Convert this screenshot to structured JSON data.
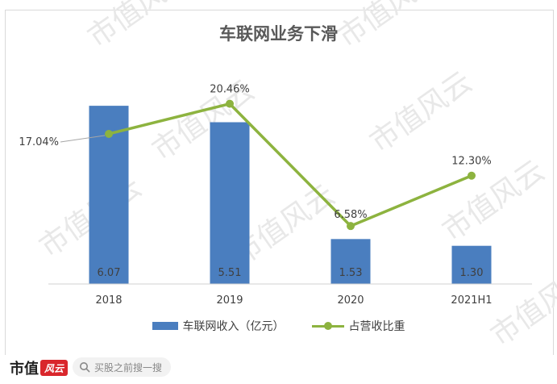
{
  "chart_data": {
    "type": "bar",
    "title": "车联网业务下滑",
    "categories": [
      "2018",
      "2019",
      "2020",
      "2021H1"
    ],
    "series": [
      {
        "name": "车联网收入（亿元）",
        "kind": "bar",
        "values": [
          6.07,
          5.51,
          1.53,
          1.3
        ],
        "labels": [
          "6.07",
          "5.51",
          "1.53",
          "1.30"
        ],
        "color": "#4a7ebf"
      },
      {
        "name": "占营收比重",
        "kind": "line",
        "values": [
          17.04,
          20.46,
          6.58,
          12.3
        ],
        "labels": [
          "17.04%",
          "20.46%",
          "6.58%",
          "12.30%"
        ],
        "color": "#8db33f"
      }
    ],
    "bar_axis_range": [
      0,
      7.2
    ],
    "line_axis_range": [
      0,
      24
    ],
    "grid": false,
    "legend_position": "bottom"
  },
  "watermark": {
    "text": "市值风云"
  },
  "footer": {
    "brand_text": "市值",
    "brand_seal_text": "风云",
    "search_placeholder": "买股之前搜一搜"
  },
  "colors": {
    "axis": "#d0d0d0",
    "text": "#404040",
    "watermark": "#e8e8e8"
  }
}
